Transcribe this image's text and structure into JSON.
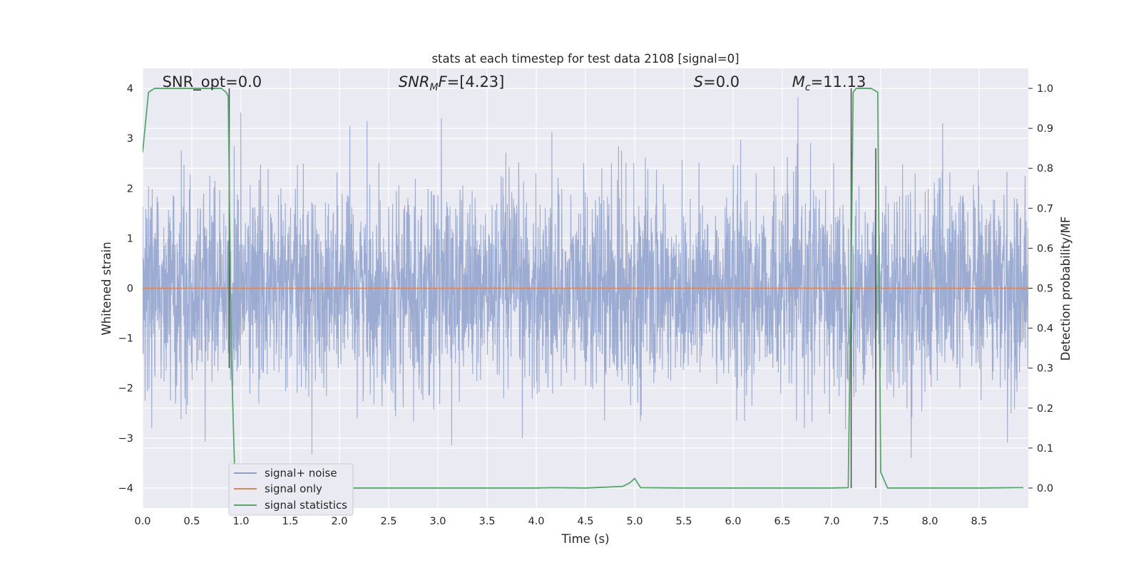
{
  "chart_data": {
    "type": "line",
    "title": "stats at each timestep for test data 2108 [signal=0]",
    "xlabel": "Time (s)",
    "ylabel_left": "Whitened strain",
    "ylabel_right": "Detection probability/MF",
    "xlim": [
      0.0,
      9.0
    ],
    "ylim_left": [
      -4.4,
      4.4
    ],
    "ylim_right": [
      -0.05,
      1.05
    ],
    "xticks": [
      "0.0",
      "0.5",
      "1.0",
      "1.5",
      "2.0",
      "2.5",
      "3.0",
      "3.5",
      "4.0",
      "4.5",
      "5.0",
      "5.5",
      "6.0",
      "6.5",
      "7.0",
      "7.5",
      "8.0",
      "8.5"
    ],
    "yticks_left": [
      "−4",
      "−3",
      "−2",
      "−1",
      "0",
      "1",
      "2",
      "3",
      "4"
    ],
    "yticks_right": [
      "0.0",
      "0.1",
      "0.2",
      "0.3",
      "0.4",
      "0.5",
      "0.6",
      "0.7",
      "0.8",
      "0.9",
      "1.0"
    ],
    "grid": true,
    "legend_position": "lower-left",
    "annotations": [
      {
        "label": "SNR_opt=0.0",
        "x": 0.2
      },
      {
        "label": "SNR_MF=[4.23]",
        "x": 2.6
      },
      {
        "label": "S=0.0",
        "x": 5.6
      },
      {
        "label": "M_c=11.13",
        "x": 6.6
      }
    ],
    "series": [
      {
        "name": "signal+ noise",
        "axis": "left",
        "color": "#8da0cb",
        "description_values": "whitened strain noise, roughly within [-4, 4], duration 9 s",
        "seed": 2108,
        "sigma": 1.0,
        "max_abs": 4.0
      },
      {
        "name": "signal only",
        "axis": "left",
        "color": "#dd8452",
        "x": [
          0.0,
          9.0
        ],
        "values": [
          0.0,
          0.0
        ]
      },
      {
        "name": "signal statistics",
        "axis": "right",
        "color": "#55a868",
        "x": [
          0.0,
          0.06,
          0.12,
          0.2,
          0.5,
          0.8,
          0.85,
          0.87,
          0.9,
          0.94,
          1.0,
          2.0,
          3.0,
          4.0,
          4.15,
          4.5,
          4.88,
          4.95,
          5.0,
          5.06,
          5.5,
          6.0,
          7.0,
          7.17,
          7.2,
          7.22,
          7.25,
          7.3,
          7.35,
          7.4,
          7.44,
          7.47,
          7.5,
          7.57,
          8.0,
          8.5,
          8.88,
          8.95
        ],
        "values": [
          0.84,
          0.99,
          1.0,
          1.0,
          1.0,
          1.0,
          0.99,
          0.98,
          0.35,
          0.0,
          0.0,
          0.0,
          0.0,
          0.0,
          0.001,
          0.0,
          0.004,
          0.013,
          0.024,
          0.001,
          0.0,
          0.0,
          0.0,
          0.001,
          0.55,
          0.99,
          1.0,
          1.0,
          1.0,
          1.0,
          0.995,
          0.99,
          0.04,
          0.0,
          0.0,
          0.0,
          0.001,
          0.001
        ]
      }
    ],
    "mf_markers": {
      "color": "#555555",
      "segments": [
        {
          "x": 0.88,
          "y_top": 1.0,
          "y_bottom": 0.3
        },
        {
          "x": 7.2,
          "y_top": 1.0,
          "y_bottom": 0.0
        },
        {
          "x": 7.45,
          "y_top": 0.85,
          "y_bottom": 0.0
        }
      ]
    }
  },
  "colors": {
    "plot_background": "#eaeaf2",
    "grid": "#ffffff",
    "legend_background": "#eaeaf2",
    "legend_border": "#cccccc"
  }
}
